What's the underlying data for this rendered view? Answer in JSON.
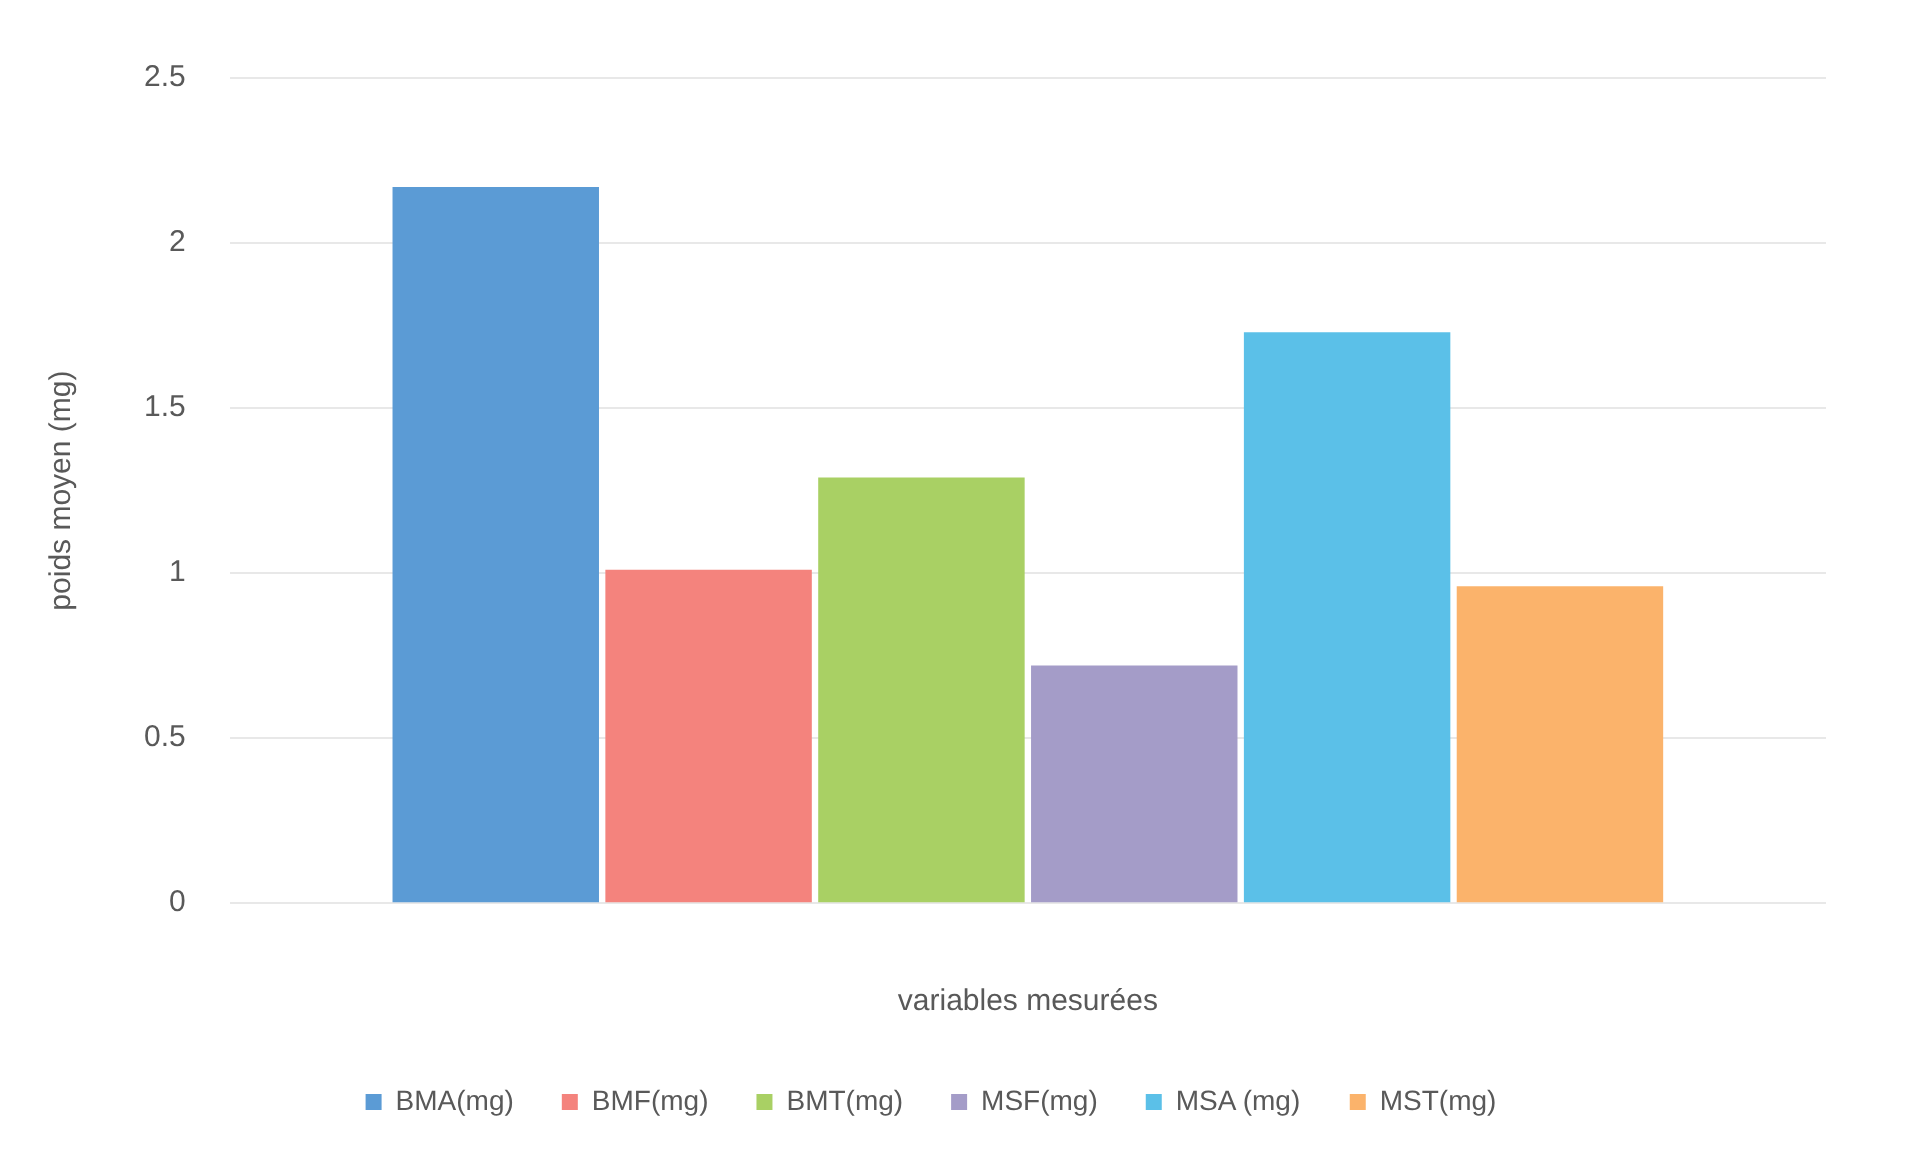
{
  "chart_data": {
    "type": "bar",
    "xlabel": "variables mesurées",
    "ylabel": "poids moyen (mg)",
    "categories": [
      null
    ],
    "series": [
      {
        "name": "BMA(mg)",
        "color": "#5b9bd5",
        "values": [
          2.17
        ]
      },
      {
        "name": "BMF(mg)",
        "color": "#f4837d",
        "values": [
          1.01
        ]
      },
      {
        "name": "BMT(mg)",
        "color": "#a9d064",
        "values": [
          1.29
        ]
      },
      {
        "name": "MSF(mg)",
        "color": "#a49cc8",
        "values": [
          0.72
        ]
      },
      {
        "name": "MSA (mg)",
        "color": "#5bc0e8",
        "values": [
          1.73
        ]
      },
      {
        "name": "MST(mg)",
        "color": "#fbb36b",
        "values": [
          0.96
        ]
      }
    ],
    "ylim": [
      0,
      2.5
    ],
    "yticks": [
      0,
      0.5,
      1,
      1.5,
      2,
      2.5
    ],
    "grid": "y",
    "legend": "bottom"
  }
}
